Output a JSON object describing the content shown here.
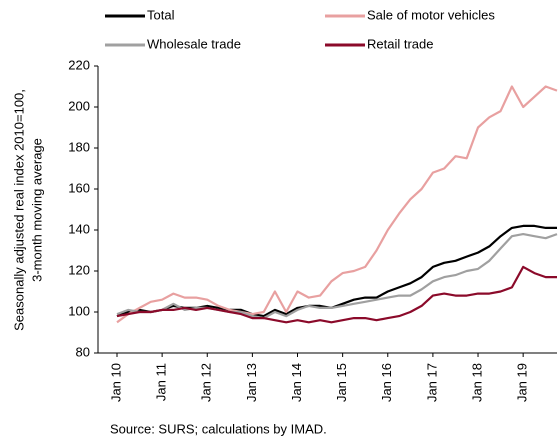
{
  "chart_data": {
    "type": "line",
    "y_label": [
      "Seasonally adjusted real index 2010=100,",
      "3-month moving average"
    ],
    "source": "Source: SURS; calculations by IMAD.",
    "categories": [
      "Jan 10",
      null,
      null,
      null,
      "Jan 11",
      null,
      null,
      null,
      "Jan 12",
      null,
      null,
      null,
      "Jan 13",
      null,
      null,
      null,
      "Jan 14",
      null,
      null,
      null,
      "Jan 15",
      null,
      null,
      null,
      "Jan 16",
      null,
      null,
      null,
      "Jan 17",
      null,
      null,
      null,
      "Jan 18",
      null,
      null,
      null,
      "Jan 19",
      null,
      null,
      null
    ],
    "series": [
      {
        "name": "Total",
        "color": "#000000",
        "values": [
          98,
          100,
          101,
          100,
          101,
          103,
          102,
          102,
          103,
          102,
          101,
          101,
          99,
          98,
          101,
          99,
          102,
          103,
          103,
          102,
          104,
          106,
          107,
          107,
          110,
          112,
          114,
          117,
          122,
          124,
          125,
          127,
          129,
          132,
          137,
          141,
          142,
          142,
          141,
          141
        ]
      },
      {
        "name": "Sale of motor vehicles",
        "color": "#e8a0a0",
        "values": [
          95,
          99,
          102,
          105,
          106,
          109,
          107,
          107,
          106,
          103,
          101,
          100,
          99,
          100,
          110,
          100,
          110,
          107,
          108,
          115,
          119,
          120,
          122,
          130,
          140,
          148,
          155,
          160,
          168,
          170,
          176,
          175,
          190,
          195,
          198,
          210,
          200,
          205,
          210,
          208
        ]
      },
      {
        "name": "Wholesale trade",
        "color": "#a0a0a0",
        "values": [
          99,
          101,
          100,
          100,
          101,
          104,
          101,
          102,
          102,
          101,
          100,
          100,
          98,
          97,
          100,
          98,
          101,
          103,
          102,
          102,
          103,
          104,
          105,
          106,
          107,
          108,
          108,
          111,
          115,
          117,
          118,
          120,
          121,
          125,
          131,
          137,
          138,
          137,
          136,
          138
        ]
      },
      {
        "name": "Retail trade",
        "color": "#8b0a2a",
        "values": [
          98,
          99,
          100,
          100,
          101,
          101,
          102,
          101,
          102,
          101,
          100,
          99,
          97,
          97,
          96,
          95,
          96,
          95,
          96,
          95,
          96,
          97,
          97,
          96,
          97,
          98,
          100,
          103,
          108,
          109,
          108,
          108,
          109,
          109,
          110,
          112,
          122,
          119,
          117,
          117
        ]
      }
    ],
    "ylim": [
      80,
      220
    ],
    "yticks": [
      80,
      100,
      120,
      140,
      160,
      180,
      200,
      220
    ]
  }
}
